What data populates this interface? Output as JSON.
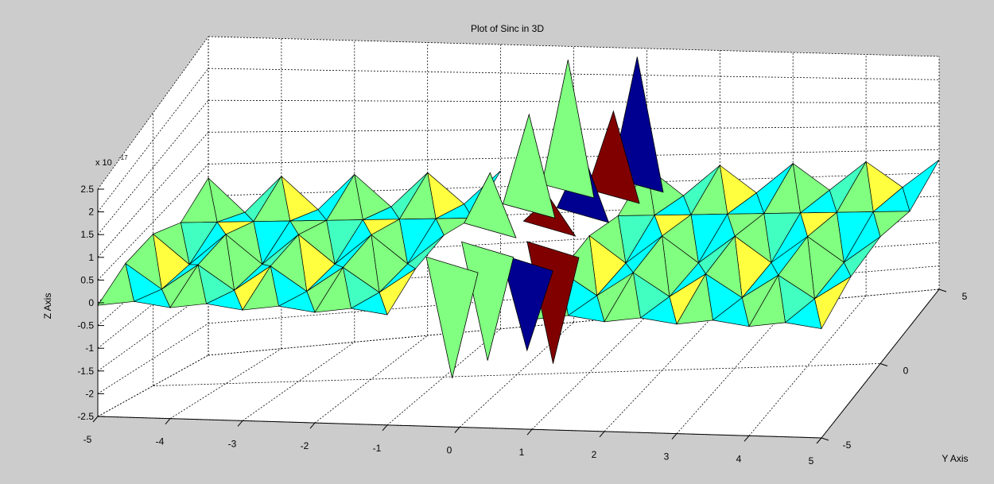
{
  "chart_data": {
    "type": "surface",
    "title": "Plot of Sinc in 3D",
    "xlabel": "",
    "ylabel": "Y Axis",
    "zlabel": "Z Axis",
    "z_exponent_label": "x 10",
    "z_exponent_value": "-17",
    "x_ticks": [
      "-5",
      "-4",
      "-3",
      "-2",
      "-1",
      "0",
      "1",
      "2",
      "3",
      "4",
      "5"
    ],
    "y_ticks": [
      "-5",
      "0",
      "5"
    ],
    "z_ticks": [
      "-2.5",
      "-2",
      "-1.5",
      "-1",
      "-0.5",
      "0",
      "0.5",
      "1",
      "1.5",
      "2",
      "2.5"
    ],
    "xlim": [
      -5,
      5
    ],
    "ylim": [
      -5,
      5
    ],
    "zlim": [
      -2.5,
      2.5
    ],
    "grid": true,
    "colormap": "jet",
    "colors": {
      "background": "#cccccc",
      "plot_face": "#ffffff",
      "green": "#80ff80",
      "cyan": "#00ffff",
      "aqua": "#40ffc0",
      "yellow": "#ffff40",
      "amber": "#ffc000",
      "dark_red": "#800000",
      "dark_blue": "#000090"
    }
  }
}
